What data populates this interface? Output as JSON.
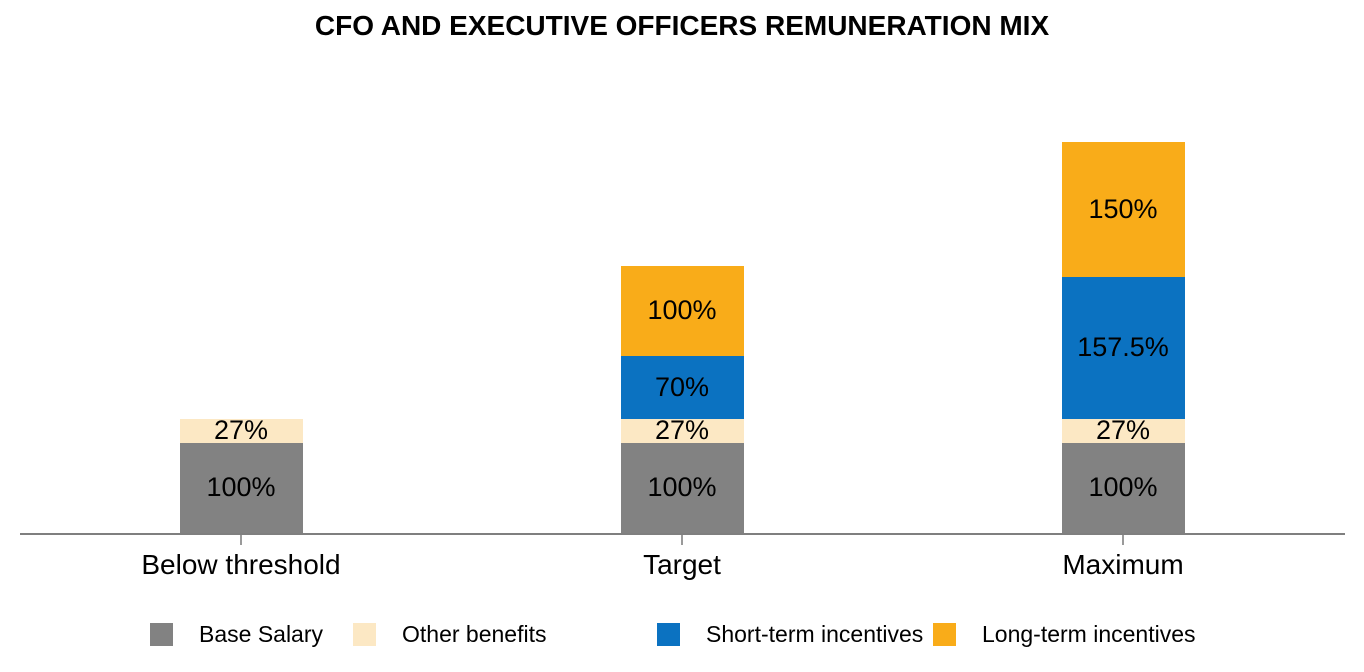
{
  "title": "CFO AND EXECUTIVE OFFICERS REMUNERATION MIX",
  "chart_data": {
    "type": "bar",
    "stacked": true,
    "title": "CFO AND EXECUTIVE OFFICERS REMUNERATION MIX",
    "xlabel": "",
    "ylabel": "",
    "unit": "%",
    "grid": false,
    "legend_position": "bottom",
    "categories": [
      "Below threshold",
      "Target",
      "Maximum"
    ],
    "series": [
      {
        "name": "Base Salary",
        "color": "#828282",
        "values": [
          100,
          100,
          100
        ],
        "labels": [
          "100%",
          "100%",
          "100%"
        ]
      },
      {
        "name": "Other benefits",
        "color": "#FCE8C4",
        "values": [
          27,
          27,
          27
        ],
        "labels": [
          "27%",
          "27%",
          "27%"
        ]
      },
      {
        "name": "Short-term incentives",
        "color": "#0B72C1",
        "values": [
          0,
          70,
          157.5
        ],
        "labels": [
          "",
          "70%",
          "157.5%"
        ]
      },
      {
        "name": "Long-term incentives",
        "color": "#F9AC19",
        "values": [
          0,
          100,
          150
        ],
        "labels": [
          "",
          "100%",
          "150%"
        ]
      }
    ],
    "axis_color": "#7F7F7F",
    "text_color": "#000000"
  }
}
